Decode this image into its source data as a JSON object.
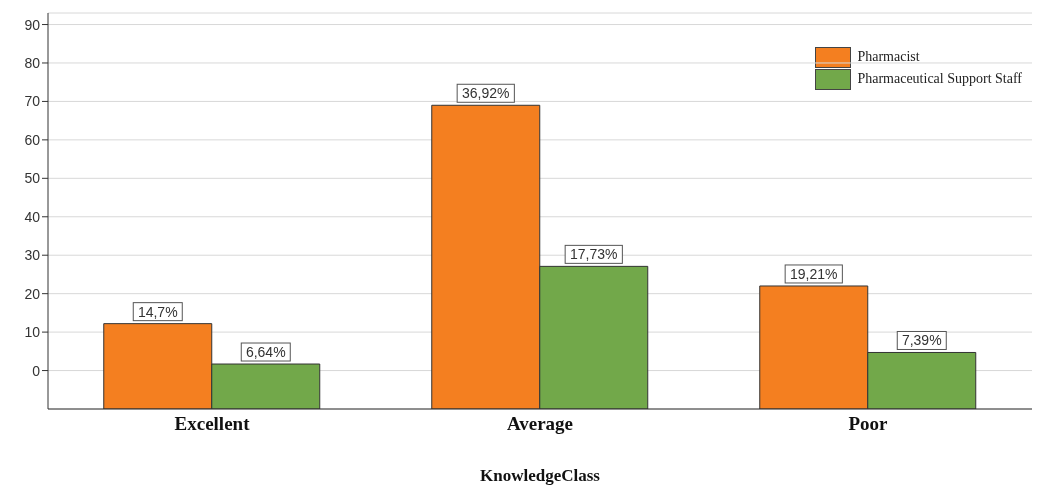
{
  "chart_data": {
    "type": "bar",
    "xlabel": "KnowledgeClass",
    "categories": [
      "Excellent",
      "Average",
      "Poor"
    ],
    "series": [
      {
        "name": "Pharmacist",
        "color": "#f47f20",
        "base": [
          -10,
          -10,
          -10
        ],
        "values": [
          22.2,
          79,
          32
        ]
      },
      {
        "name": "Pharmaceutical Support Staff",
        "color": "#72a84a",
        "base": [
          -10,
          -10,
          -10
        ],
        "values": [
          11.7,
          37.1,
          14.7
        ]
      }
    ],
    "annotations": [
      {
        "text": "14,7%",
        "x": "Excellent",
        "y": 12.2
      },
      {
        "text": "36,92%",
        "x": "Average",
        "y": 69
      },
      {
        "text": "19,21%",
        "x": "Poor",
        "y": 22
      },
      {
        "text": "6,64%",
        "x": "Excellent",
        "y": 1.7
      },
      {
        "text": "17,73%",
        "x": "Average",
        "y": 27.1
      },
      {
        "text": "7,39%",
        "x": "Poor",
        "y": 4.7
      }
    ],
    "ylim": [
      -10,
      93
    ],
    "yticks": [
      0,
      10,
      20,
      30,
      40,
      50,
      60,
      70,
      80,
      90
    ],
    "grid": "y",
    "legend": "top right"
  }
}
